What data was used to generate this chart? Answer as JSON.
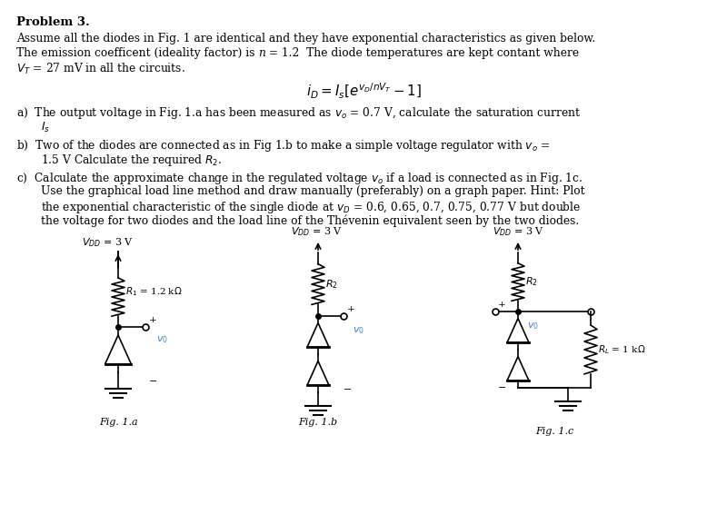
{
  "title": "Problem 3.",
  "background_color": "#ffffff",
  "text_color": "#000000",
  "blue_color": "#4488cc",
  "fig_width": 8.0,
  "fig_height": 5.77,
  "formula": "$i_D = I_s\\left[e^{v_D/nV_T} - 1\\right]$",
  "fig_labels": [
    "Fig. 1.a",
    "Fig. 1.b",
    "Fig. 1.c"
  ]
}
